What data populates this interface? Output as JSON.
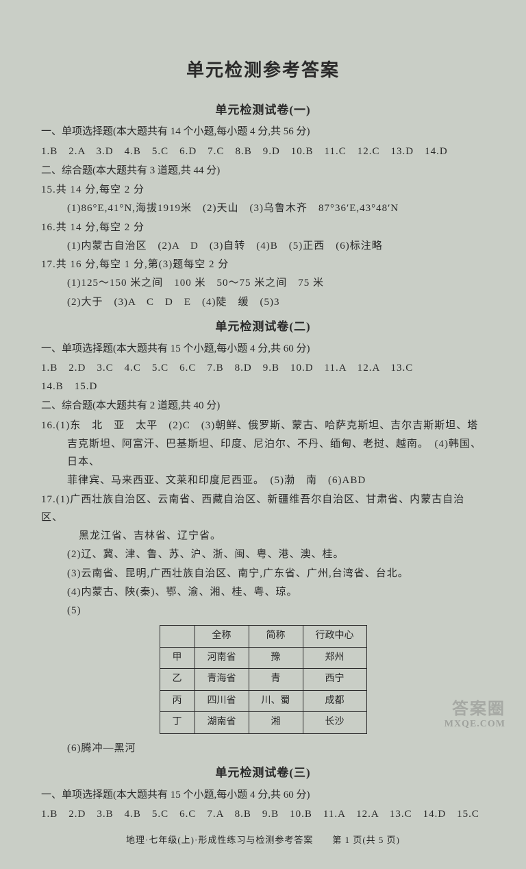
{
  "main_title": "单元检测参考答案",
  "unit1": {
    "title": "单元检测试卷(一)",
    "section1_label": "一、单项选择题(本大题共有 14 个小题,每小题 4 分,共 56 分)",
    "s1_answers": "1.B　2.A　3.D　4.B　5.C　6.D　7.C　8.B　9.D　10.B　11.C　12.C　13.D　14.D",
    "section2_label": "二、综合题(本大题共有 3 道题,共 44 分)",
    "q15_label": "15.共 14 分,每空 2 分",
    "q15_line1": "(1)86°E,41°N,海拔1919米　(2)天山　(3)乌鲁木齐　87°36′E,43°48′N",
    "q16_label": "16.共 14 分,每空 2 分",
    "q16_line1": "(1)内蒙古自治区　(2)A　D　(3)自转　(4)B　(5)正西　(6)标注略",
    "q17_label": "17.共 16 分,每空 1 分,第(3)题每空 2 分",
    "q17_line1": "(1)125～150 米之间　100 米　50～75 米之间　75 米",
    "q17_line2": "(2)大于　(3)A　C　D　E　(4)陡　缓　(5)3"
  },
  "unit2": {
    "title": "单元检测试卷(二)",
    "section1_label": "一、单项选择题(本大题共有 15 个小题,每小题 4 分,共 60 分)",
    "s1_answers1": "1.B　2.D　3.C　4.C　5.C　6.C　7.B　8.D　9.B　10.D　11.A　12.A　13.C",
    "s1_answers2": "14.B　15.D",
    "section2_label": "二、综合题(本大题共有 2 道题,共 40 分)",
    "q16_line1": "16.(1)东　北　亚　太平　(2)C　(3)朝鲜、俄罗斯、蒙古、哈萨克斯坦、吉尔吉斯斯坦、塔",
    "q16_line2": "吉克斯坦、阿富汗、巴基斯坦、印度、尼泊尔、不丹、缅甸、老挝、越南。　(4)韩国、日本、",
    "q16_line3": "菲律宾、马来西亚、文莱和印度尼西亚。　(5)渤　南　(6)ABD",
    "q17_line1": "17.(1)广西壮族自治区、云南省、西藏自治区、新疆维吾尔自治区、甘肃省、内蒙古自治区、",
    "q17_line1b": "黑龙江省、吉林省、辽宁省。",
    "q17_line2": "(2)辽、冀、津、鲁、苏、沪、浙、闽、粤、港、澳、桂。",
    "q17_line3": "(3)云南省、昆明,广西壮族自治区、南宁,广东省、广州,台湾省、台北。",
    "q17_line4": "(4)内蒙古、陕(秦)、鄂、渝、湘、桂、粤、琼。",
    "q17_line5": "(5)",
    "table": {
      "headers": [
        "",
        "全称",
        "简称",
        "行政中心"
      ],
      "rows": [
        [
          "甲",
          "河南省",
          "豫",
          "郑州"
        ],
        [
          "乙",
          "青海省",
          "青",
          "西宁"
        ],
        [
          "丙",
          "四川省",
          "川、蜀",
          "成都"
        ],
        [
          "丁",
          "湖南省",
          "湘",
          "长沙"
        ]
      ]
    },
    "q17_line6": "(6)腾冲—黑河"
  },
  "unit3": {
    "title": "单元检测试卷(三)",
    "section1_label": "一、单项选择题(本大题共有 15 个小题,每小题 4 分,共 60 分)",
    "s1_answers": "1.B　2.D　3.B　4.B　5.C　6.C　7.A　8.B　9.B　10.B　11.A　12.A　13.C　14.D　15.C"
  },
  "footer": "地理·七年级(上)·形成性练习与检测参考答案　　第 1 页(共 5 页)",
  "watermark1": "答案圈",
  "watermark2": "MXQE.COM"
}
